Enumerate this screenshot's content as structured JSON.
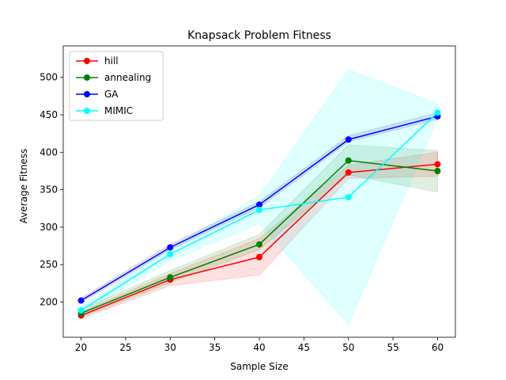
{
  "chart_data": {
    "type": "line",
    "title": "Knapsack Problem Fitness",
    "x_label": "Sample Size",
    "y_label": "Average Fitness",
    "x": [
      20,
      30,
      40,
      50,
      60
    ],
    "xlim": [
      18,
      62
    ],
    "xticks": [
      20,
      25,
      30,
      35,
      40,
      45,
      50,
      55,
      60
    ],
    "ylim": [
      153,
      542
    ],
    "yticks": [
      200,
      250,
      300,
      350,
      400,
      450,
      500
    ],
    "grid": false,
    "legend": "upper left",
    "series": [
      {
        "name": "hill",
        "color": "#ff0000",
        "values": [
          182,
          230,
          260,
          373,
          384
        ],
        "lower": [
          178,
          222,
          236,
          365,
          368
        ],
        "upper": [
          187,
          238,
          285,
          383,
          400
        ]
      },
      {
        "name": "annealing",
        "color": "#008000",
        "values": [
          185,
          233,
          277,
          389,
          375
        ],
        "lower": [
          180,
          226,
          270,
          370,
          347
        ],
        "upper": [
          190,
          242,
          290,
          410,
          402
        ]
      },
      {
        "name": "GA",
        "color": "#0000ff",
        "values": [
          202,
          273,
          330,
          417,
          448
        ],
        "lower": [
          199,
          270,
          326,
          414,
          444
        ],
        "upper": [
          205,
          277,
          334,
          422,
          453
        ]
      },
      {
        "name": "MIMIC",
        "color": "#00ffff",
        "values": [
          189,
          264,
          323,
          340,
          453
        ],
        "lower": [
          184,
          255,
          305,
          170,
          445
        ],
        "upper": [
          194,
          272,
          342,
          510,
          465
        ]
      }
    ]
  }
}
